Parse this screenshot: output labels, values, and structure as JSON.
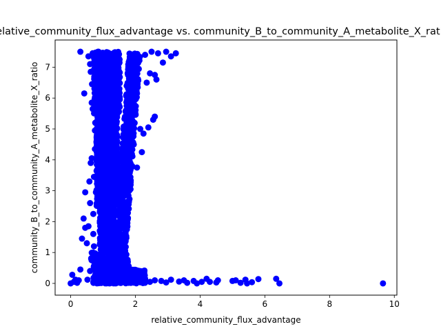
{
  "chart_data": {
    "type": "scatter",
    "title": "relative_community_flux_advantage vs. community_B_to_community_A_metabolite_X_ratio",
    "xlabel": "relative_community_flux_advantage",
    "ylabel": "community_B_to_community_A_metabolite_X_ratio",
    "xlim": [
      -0.48,
      10.08
    ],
    "ylim": [
      -0.38,
      7.88
    ],
    "xticks": [
      "0",
      "2",
      "4",
      "6",
      "8",
      "10"
    ],
    "yticks": [
      "0",
      "1",
      "2",
      "3",
      "4",
      "5",
      "6",
      "7"
    ],
    "grid": false,
    "legend": "none",
    "marker_color": "#0000ff",
    "series": [
      {
        "points": [
          [
            0.0,
            0.0
          ],
          [
            0.05,
            0.28
          ],
          [
            0.1,
            0.05
          ],
          [
            0.15,
            0.12
          ],
          [
            0.2,
            0.02
          ],
          [
            0.25,
            0.1
          ],
          [
            0.3,
            0.45
          ],
          [
            0.35,
            1.45
          ],
          [
            0.4,
            2.1
          ],
          [
            0.45,
            1.8
          ],
          [
            0.5,
            1.3
          ],
          [
            0.55,
            1.85
          ],
          [
            0.3,
            7.5
          ],
          [
            0.42,
            6.15
          ],
          [
            0.45,
            2.95
          ],
          [
            0.52,
            0.12
          ],
          [
            0.55,
            7.35
          ],
          [
            0.58,
            3.3
          ],
          [
            0.6,
            7.1
          ],
          [
            0.62,
            6.85
          ],
          [
            0.6,
            0.4
          ],
          [
            0.6,
            2.6
          ],
          [
            0.62,
            3.9
          ],
          [
            0.65,
            4.05
          ],
          [
            0.65,
            5.85
          ],
          [
            0.66,
            6.45
          ],
          [
            0.68,
            7.45
          ],
          [
            0.68,
            5.65
          ],
          [
            0.7,
            2.25
          ],
          [
            0.7,
            1.6
          ],
          [
            0.7,
            0.75
          ],
          [
            0.72,
            3.45
          ],
          [
            0.72,
            1.2
          ],
          [
            0.75,
            4.35
          ],
          [
            0.75,
            4.95
          ],
          [
            0.76,
            5.2
          ],
          [
            0.78,
            6.6
          ],
          [
            0.78,
            2.95
          ],
          [
            0.8,
            4.6
          ],
          [
            0.8,
            5.5
          ],
          [
            0.8,
            7.2
          ],
          [
            0.82,
            6.0
          ],
          [
            0.84,
            3.7
          ],
          [
            0.86,
            7.5
          ],
          [
            1.9,
            0.4
          ],
          [
            2.0,
            0.3
          ],
          [
            2.05,
            0.15
          ],
          [
            2.15,
            0.2
          ],
          [
            2.3,
            0.12
          ],
          [
            2.45,
            0.05
          ],
          [
            2.6,
            0.1
          ],
          [
            2.8,
            0.08
          ],
          [
            2.95,
            0.03
          ],
          [
            3.1,
            0.12
          ],
          [
            3.35,
            0.06
          ],
          [
            3.5,
            0.1
          ],
          [
            3.6,
            0.02
          ],
          [
            3.8,
            0.08
          ],
          [
            3.9,
            0.0
          ],
          [
            4.05,
            0.05
          ],
          [
            4.2,
            0.15
          ],
          [
            4.3,
            0.05
          ],
          [
            4.5,
            0.03
          ],
          [
            4.55,
            0.1
          ],
          [
            5.0,
            0.08
          ],
          [
            5.1,
            0.1
          ],
          [
            5.25,
            0.02
          ],
          [
            5.4,
            0.12
          ],
          [
            5.45,
            0.0
          ],
          [
            5.6,
            0.04
          ],
          [
            5.8,
            0.14
          ],
          [
            6.35,
            0.15
          ],
          [
            6.45,
            0.0
          ],
          [
            9.65,
            0.0
          ],
          [
            1.8,
            6.3
          ],
          [
            1.85,
            7.1
          ],
          [
            1.9,
            6.7
          ],
          [
            1.95,
            5.8
          ],
          [
            2.0,
            5.5
          ],
          [
            2.05,
            6.15
          ],
          [
            2.1,
            7.3
          ],
          [
            2.15,
            5.0
          ],
          [
            2.2,
            4.25
          ],
          [
            2.25,
            4.85
          ],
          [
            2.3,
            7.4
          ],
          [
            2.35,
            6.5
          ],
          [
            2.4,
            5.05
          ],
          [
            2.45,
            6.8
          ],
          [
            2.5,
            7.5
          ],
          [
            2.55,
            5.3
          ],
          [
            2.6,
            5.4
          ],
          [
            2.6,
            6.75
          ],
          [
            2.65,
            6.6
          ],
          [
            2.7,
            7.45
          ],
          [
            2.85,
            7.15
          ],
          [
            2.95,
            7.5
          ],
          [
            3.1,
            7.35
          ],
          [
            3.25,
            7.45
          ],
          [
            1.7,
            4.05
          ],
          [
            1.75,
            3.5
          ],
          [
            1.8,
            3.3
          ],
          [
            1.8,
            2.65
          ],
          [
            1.65,
            2.3
          ],
          [
            1.9,
            3.8
          ],
          [
            1.85,
            3.05
          ],
          [
            2.05,
            3.75
          ],
          [
            1.95,
            4.5
          ],
          [
            1.6,
            1.4
          ],
          [
            1.55,
            1.0
          ],
          [
            1.7,
            0.3
          ]
        ]
      }
    ]
  }
}
